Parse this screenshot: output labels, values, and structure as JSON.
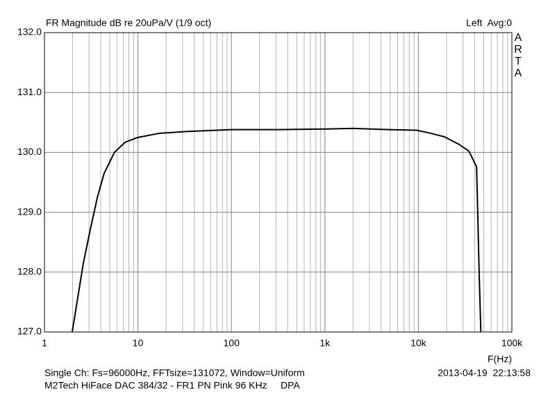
{
  "chart_data": {
    "type": "line",
    "title": "FR Magnitude dB re 20uPa/V (1/9 oct)",
    "channel_label": "Left  Avg:0",
    "brand": "ARTA",
    "x_label": "F(Hz)",
    "footer_line1": "Single Ch: Fs=96000Hz, FFTsize=131072, Window=Uniform",
    "footer_date": "2013-04-19  22:13:58",
    "footer_line2": "M2Tech HiFace DAC 384/32 - FR1 PN Pink 96 KHz     DPA",
    "xscale": "log",
    "xlim": [
      1,
      100000
    ],
    "ylim": [
      127,
      132
    ],
    "xticks": [
      1,
      10,
      100,
      {
        "value": 1000,
        "label": "1k"
      },
      {
        "value": 10000,
        "label": "10k"
      },
      {
        "value": 100000,
        "label": "100k"
      }
    ],
    "xminorticks": [
      2,
      3,
      4,
      5,
      6,
      7,
      8,
      9,
      20,
      30,
      40,
      50,
      60,
      70,
      80,
      90,
      200,
      300,
      400,
      500,
      600,
      700,
      800,
      900,
      2000,
      3000,
      4000,
      5000,
      6000,
      7000,
      8000,
      9000,
      20000,
      30000,
      40000,
      50000,
      60000,
      70000,
      80000,
      90000
    ],
    "yticks": [
      {
        "value": 127,
        "label": "127.0"
      },
      {
        "value": 128,
        "label": "128.0"
      },
      {
        "value": 129,
        "label": "129.0"
      },
      {
        "value": 130,
        "label": "130.0"
      },
      {
        "value": 131,
        "label": "131.0"
      },
      {
        "value": 132,
        "label": "132.0"
      }
    ],
    "grid": true,
    "series": [
      {
        "color": "#000000",
        "x": [
          1.98,
          2.2,
          2.6,
          3.1,
          3.67,
          4.35,
          5.6,
          7.3,
          10,
          17.1,
          34,
          100,
          315,
          1000,
          2000,
          4800,
          9500,
          13500,
          19000,
          26800,
          34700,
          41900,
          43000,
          44800,
          46600
        ],
        "values": [
          127.0,
          127.44,
          128.14,
          128.72,
          129.24,
          129.65,
          130.0,
          130.17,
          130.25,
          130.32,
          130.35,
          130.38,
          130.38,
          130.39,
          130.4,
          130.38,
          130.37,
          130.32,
          130.26,
          130.14,
          130.02,
          129.76,
          129.07,
          127.9,
          127.0
        ]
      }
    ]
  }
}
